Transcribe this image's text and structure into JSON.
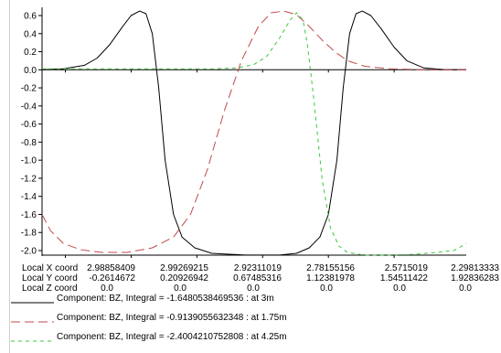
{
  "chart_data": {
    "type": "line",
    "title": "",
    "xlabel": "",
    "ylabel": "",
    "ylim": [
      -2.1,
      0.7
    ],
    "yticks": [
      0.6,
      0.4,
      0.2,
      0.0,
      -0.2,
      -0.4,
      -0.6,
      -0.8,
      -1.0,
      -1.2,
      -1.4,
      -1.6,
      -1.8,
      -2.0
    ],
    "ytick_labels": [
      "0.6",
      "0.4",
      "0.2",
      "0.0",
      "-0.2",
      "-0.4",
      "-0.6",
      "-0.8",
      "-1.0",
      "-1.2",
      "-1.4",
      "-1.6",
      "-1.8",
      "-2.0"
    ],
    "grid": false,
    "x_range": [
      0,
      1
    ],
    "series": [
      {
        "name": "Component: BZ, Integral = -1.6480538469536 : at 3m",
        "style": "solid",
        "color": "#000000",
        "points": [
          [
            0.0,
            0.0
          ],
          [
            0.05,
            0.01
          ],
          [
            0.1,
            0.05
          ],
          [
            0.13,
            0.13
          ],
          [
            0.16,
            0.28
          ],
          [
            0.19,
            0.48
          ],
          [
            0.21,
            0.6
          ],
          [
            0.23,
            0.65
          ],
          [
            0.245,
            0.62
          ],
          [
            0.26,
            0.4
          ],
          [
            0.275,
            -0.2
          ],
          [
            0.29,
            -1.0
          ],
          [
            0.31,
            -1.6
          ],
          [
            0.33,
            -1.85
          ],
          [
            0.36,
            -1.97
          ],
          [
            0.4,
            -2.03
          ],
          [
            0.48,
            -2.05
          ],
          [
            0.56,
            -2.05
          ],
          [
            0.6,
            -2.03
          ],
          [
            0.63,
            -1.97
          ],
          [
            0.655,
            -1.85
          ],
          [
            0.675,
            -1.6
          ],
          [
            0.695,
            -1.0
          ],
          [
            0.71,
            -0.2
          ],
          [
            0.725,
            0.4
          ],
          [
            0.74,
            0.62
          ],
          [
            0.755,
            0.65
          ],
          [
            0.775,
            0.6
          ],
          [
            0.8,
            0.45
          ],
          [
            0.83,
            0.25
          ],
          [
            0.86,
            0.1
          ],
          [
            0.9,
            0.02
          ],
          [
            0.95,
            0.0
          ],
          [
            1.0,
            0.0
          ]
        ]
      },
      {
        "name": "Component: BZ, Integral = -0.9139055632348 : at 1.75m",
        "style": "dashed",
        "color": "#c04a4a",
        "points": [
          [
            0.0,
            -1.6
          ],
          [
            0.02,
            -1.78
          ],
          [
            0.05,
            -1.92
          ],
          [
            0.09,
            -1.99
          ],
          [
            0.14,
            -2.02
          ],
          [
            0.2,
            -2.02
          ],
          [
            0.26,
            -1.97
          ],
          [
            0.31,
            -1.85
          ],
          [
            0.35,
            -1.6
          ],
          [
            0.39,
            -1.1
          ],
          [
            0.43,
            -0.45
          ],
          [
            0.47,
            0.1
          ],
          [
            0.51,
            0.48
          ],
          [
            0.54,
            0.63
          ],
          [
            0.57,
            0.65
          ],
          [
            0.6,
            0.61
          ],
          [
            0.63,
            0.48
          ],
          [
            0.66,
            0.33
          ],
          [
            0.69,
            0.2
          ],
          [
            0.72,
            0.1
          ],
          [
            0.76,
            0.04
          ],
          [
            0.82,
            0.01
          ],
          [
            0.9,
            0.0
          ],
          [
            1.0,
            0.0
          ]
        ]
      },
      {
        "name": "Component: BZ, Integral = -2.4004210752808 : at 4.25m",
        "style": "dashed",
        "color": "#3cc83c",
        "points": [
          [
            0.0,
            0.01
          ],
          [
            0.2,
            0.01
          ],
          [
            0.4,
            0.01
          ],
          [
            0.46,
            0.02
          ],
          [
            0.5,
            0.06
          ],
          [
            0.53,
            0.15
          ],
          [
            0.56,
            0.35
          ],
          [
            0.585,
            0.55
          ],
          [
            0.6,
            0.63
          ],
          [
            0.615,
            0.55
          ],
          [
            0.625,
            0.3
          ],
          [
            0.64,
            -0.3
          ],
          [
            0.66,
            -1.2
          ],
          [
            0.68,
            -1.75
          ],
          [
            0.7,
            -1.95
          ],
          [
            0.72,
            -2.02
          ],
          [
            0.76,
            -2.05
          ],
          [
            0.82,
            -2.05
          ],
          [
            0.88,
            -2.04
          ],
          [
            0.93,
            -2.02
          ],
          [
            0.97,
            -2.0
          ],
          [
            0.99,
            -1.95
          ],
          [
            1.0,
            -1.92
          ]
        ]
      }
    ]
  },
  "coords": {
    "x_label": "Local X coord",
    "y_label": "Local Y coord",
    "z_label": "Local Z coord",
    "x_values": [
      "2.98858409",
      "2.99269215",
      "2.92311019",
      "2.78155156",
      "2.5715019",
      "2.29813333"
    ],
    "y_values": [
      "-0.2614672",
      "0.20926942",
      "0.67485316",
      "1.12381978",
      "1.54511422",
      "1.92836283"
    ],
    "z_values": [
      "0.0",
      "0.0",
      "0.0",
      "0.0",
      "0.0",
      "0.0"
    ]
  },
  "legend": [
    {
      "text": "Component:  BZ, Integral = -1.6480538469536 : at 3m",
      "color": "#000000",
      "style": "solid"
    },
    {
      "text": "Component:  BZ, Integral = -0.9139055632348 : at 1.75m",
      "color": "#c04a4a",
      "style": "dashed"
    },
    {
      "text": "Component:  BZ, Integral = -2.4004210752808 : at 4.25m",
      "color": "#3cc83c",
      "style": "dashed"
    }
  ]
}
